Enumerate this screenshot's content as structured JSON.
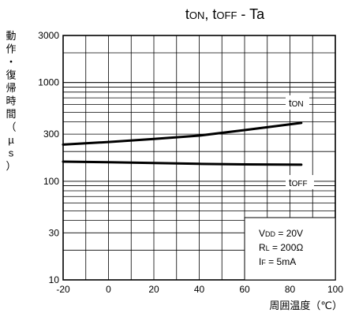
{
  "chart_data": {
    "type": "line",
    "title": {
      "main": "t",
      "sub1": "ON",
      "sep": ", t",
      "sub2": "OFF",
      "tail": " - Ta"
    },
    "ylabel": "動作・復帰時間（µs）",
    "xlabel": "周囲温度（℃）",
    "xlim": [
      -20,
      100
    ],
    "ylim": [
      10,
      3000
    ],
    "yscale": "log",
    "x_ticks": [
      "-20",
      "0",
      "20",
      "40",
      "60",
      "80",
      "100"
    ],
    "y_ticks": [
      "3000",
      "1000",
      "300",
      "100",
      "30",
      "10"
    ],
    "series": [
      {
        "name": "tON",
        "points": [
          [
            -20,
            235
          ],
          [
            0,
            250
          ],
          [
            20,
            268
          ],
          [
            40,
            290
          ],
          [
            60,
            330
          ],
          [
            85,
            390
          ]
        ]
      },
      {
        "name": "tOFF",
        "points": [
          [
            -20,
            158
          ],
          [
            0,
            156
          ],
          [
            20,
            153
          ],
          [
            40,
            150
          ],
          [
            60,
            148
          ],
          [
            85,
            147
          ]
        ]
      }
    ],
    "series_labels": [
      {
        "main": "t",
        "sub": "ON"
      },
      {
        "main": "t",
        "sub": "OFF"
      }
    ],
    "conditions": [
      {
        "main": "V",
        "sub": "DD",
        "rest": " = 20V"
      },
      {
        "main": "R",
        "sub": "L",
        "rest": " = 200Ω"
      },
      {
        "main": "I",
        "sub": "F",
        "rest": " = 5mA"
      }
    ]
  }
}
